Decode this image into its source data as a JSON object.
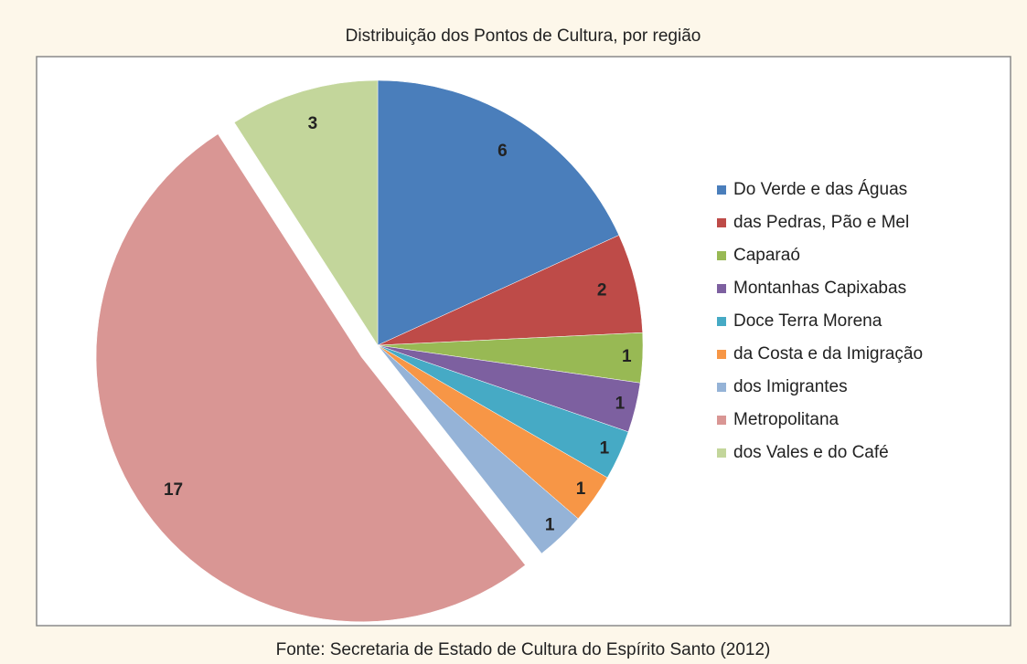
{
  "chart_data": {
    "type": "pie",
    "title": "Distribuição dos Pontos de Cultura, por região",
    "source": "Fonte: Secretaria de Estado de Cultura do Espírito Santo (2012)",
    "categories": [
      "Do Verde e das Águas",
      "das Pedras, Pão e Mel",
      "Caparaó",
      "Montanhas Capixabas",
      "Doce Terra Morena",
      "da Costa e da Imigração",
      "dos Imigrantes",
      "Metropolitana",
      "dos Vales e do Café"
    ],
    "values": [
      6,
      2,
      1,
      1,
      1,
      1,
      1,
      17,
      3
    ],
    "colors": [
      "#4a7ebb",
      "#be4b48",
      "#98b954",
      "#7d60a0",
      "#46aac5",
      "#f79646",
      "#95b3d7",
      "#d99694",
      "#c3d69b"
    ],
    "exploded": [
      7
    ],
    "legend": "right"
  }
}
